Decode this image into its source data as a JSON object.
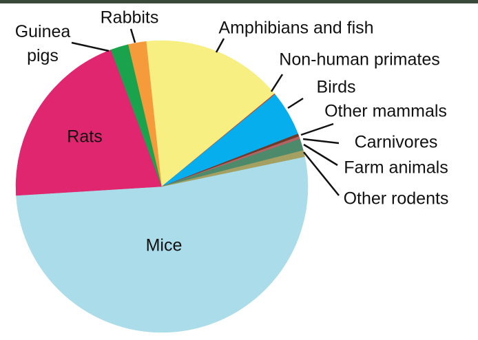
{
  "chart_data": {
    "type": "pie",
    "categories": [
      "Mice",
      "Rats",
      "Guinea pigs",
      "Rabbits",
      "Amphibians and fish",
      "Non-human primates",
      "Birds",
      "Other mammals",
      "Carnivores",
      "Farm animals",
      "Other rodents"
    ],
    "values": [
      52.3,
      20.3,
      2,
      2,
      15.7,
      0.1,
      5,
      0.3,
      0.3,
      1.3,
      0.7
    ],
    "colors": [
      "#aadde9",
      "#e0266f",
      "#1ba24c",
      "#f59b3b",
      "#f7ef82",
      "#d04020",
      "#06aeed",
      "#6b3b2b",
      "#b46262",
      "#4d8a6c",
      "#a3a062"
    ]
  }
}
